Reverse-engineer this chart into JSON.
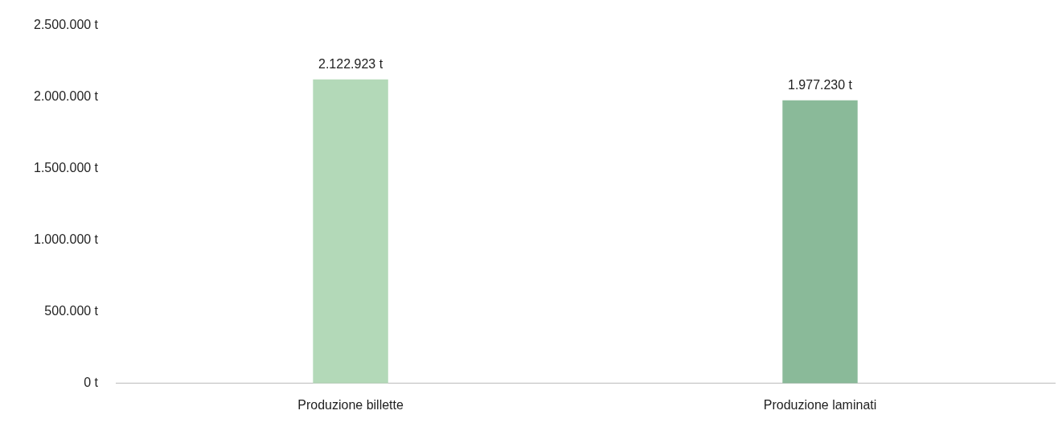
{
  "chart_data": {
    "type": "bar",
    "categories": [
      "Produzione billette",
      "Produzione laminati"
    ],
    "values": [
      2122923,
      1977230
    ],
    "colors": [
      "#b3d9b8",
      "#8aba99"
    ],
    "value_labels": [
      "2.122.923 t",
      "1.977.230 t"
    ],
    "ylim": [
      0,
      2500000
    ],
    "yticks": [
      {
        "value": 0,
        "label": "0 t"
      },
      {
        "value": 500000,
        "label": "500.000 t"
      },
      {
        "value": 1000000,
        "label": "1.000.000 t"
      },
      {
        "value": 1500000,
        "label": "1.500.000 t"
      },
      {
        "value": 2000000,
        "label": "2.000.000 t"
      },
      {
        "value": 2500000,
        "label": "2.500.000 t"
      }
    ],
    "grid": false,
    "legend": false
  }
}
